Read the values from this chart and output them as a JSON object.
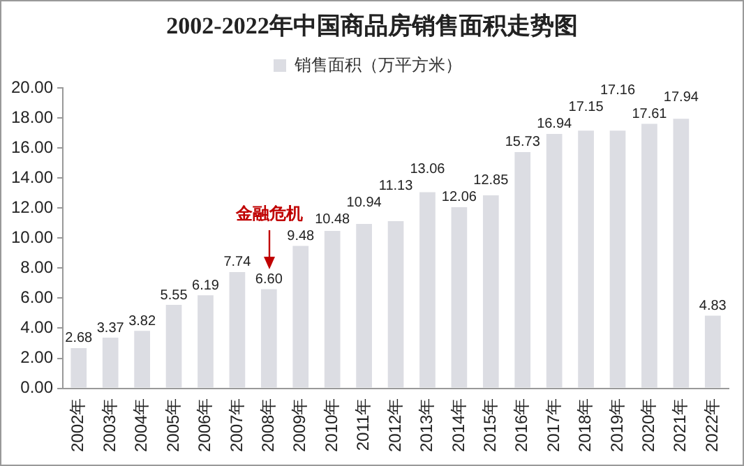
{
  "chart_data": {
    "type": "bar",
    "title": "2002-2022年中国商品房销售面积走势图",
    "categories": [
      "2002年",
      "2003年",
      "2004年",
      "2005年",
      "2006年",
      "2007年",
      "2008年",
      "2009年",
      "2010年",
      "2011年",
      "2012年",
      "2013年",
      "2014年",
      "2015年",
      "2016年",
      "2017年",
      "2018年",
      "2019年",
      "2020年",
      "2021年",
      "2022年"
    ],
    "series": [
      {
        "name": "销售面积（万平方米）",
        "color": "#dcdde3",
        "values": [
          2.68,
          3.37,
          3.82,
          5.55,
          6.19,
          7.74,
          6.6,
          9.48,
          10.48,
          10.94,
          11.13,
          13.06,
          12.06,
          12.85,
          15.73,
          16.94,
          17.15,
          17.16,
          17.61,
          17.94,
          4.83
        ],
        "value_labels": [
          "2.68",
          "3.37",
          "3.82",
          "5.55",
          "6.19",
          "7.74",
          "6.60",
          "9.48",
          "10.48",
          "10.94",
          "11.13",
          "13.06",
          "12.06",
          "12.85",
          "15.73",
          "16.94",
          "17.15",
          "17.16",
          "17.61",
          "17.94",
          "4.83"
        ]
      }
    ],
    "ylim": [
      0,
      20
    ],
    "yticks": [
      {
        "value": 0,
        "label": "0.00"
      },
      {
        "value": 2,
        "label": "2.00"
      },
      {
        "value": 4,
        "label": "4.00"
      },
      {
        "value": 6,
        "label": "6.00"
      },
      {
        "value": 8,
        "label": "8.00"
      },
      {
        "value": 10,
        "label": "10.00"
      },
      {
        "value": 12,
        "label": "12.00"
      },
      {
        "value": 14,
        "label": "14.00"
      },
      {
        "value": 16,
        "label": "16.00"
      },
      {
        "value": 18,
        "label": "18.00"
      },
      {
        "value": 20,
        "label": "20.00"
      }
    ],
    "grid": false,
    "legend": "top",
    "annotations": [
      "金融危机"
    ]
  }
}
